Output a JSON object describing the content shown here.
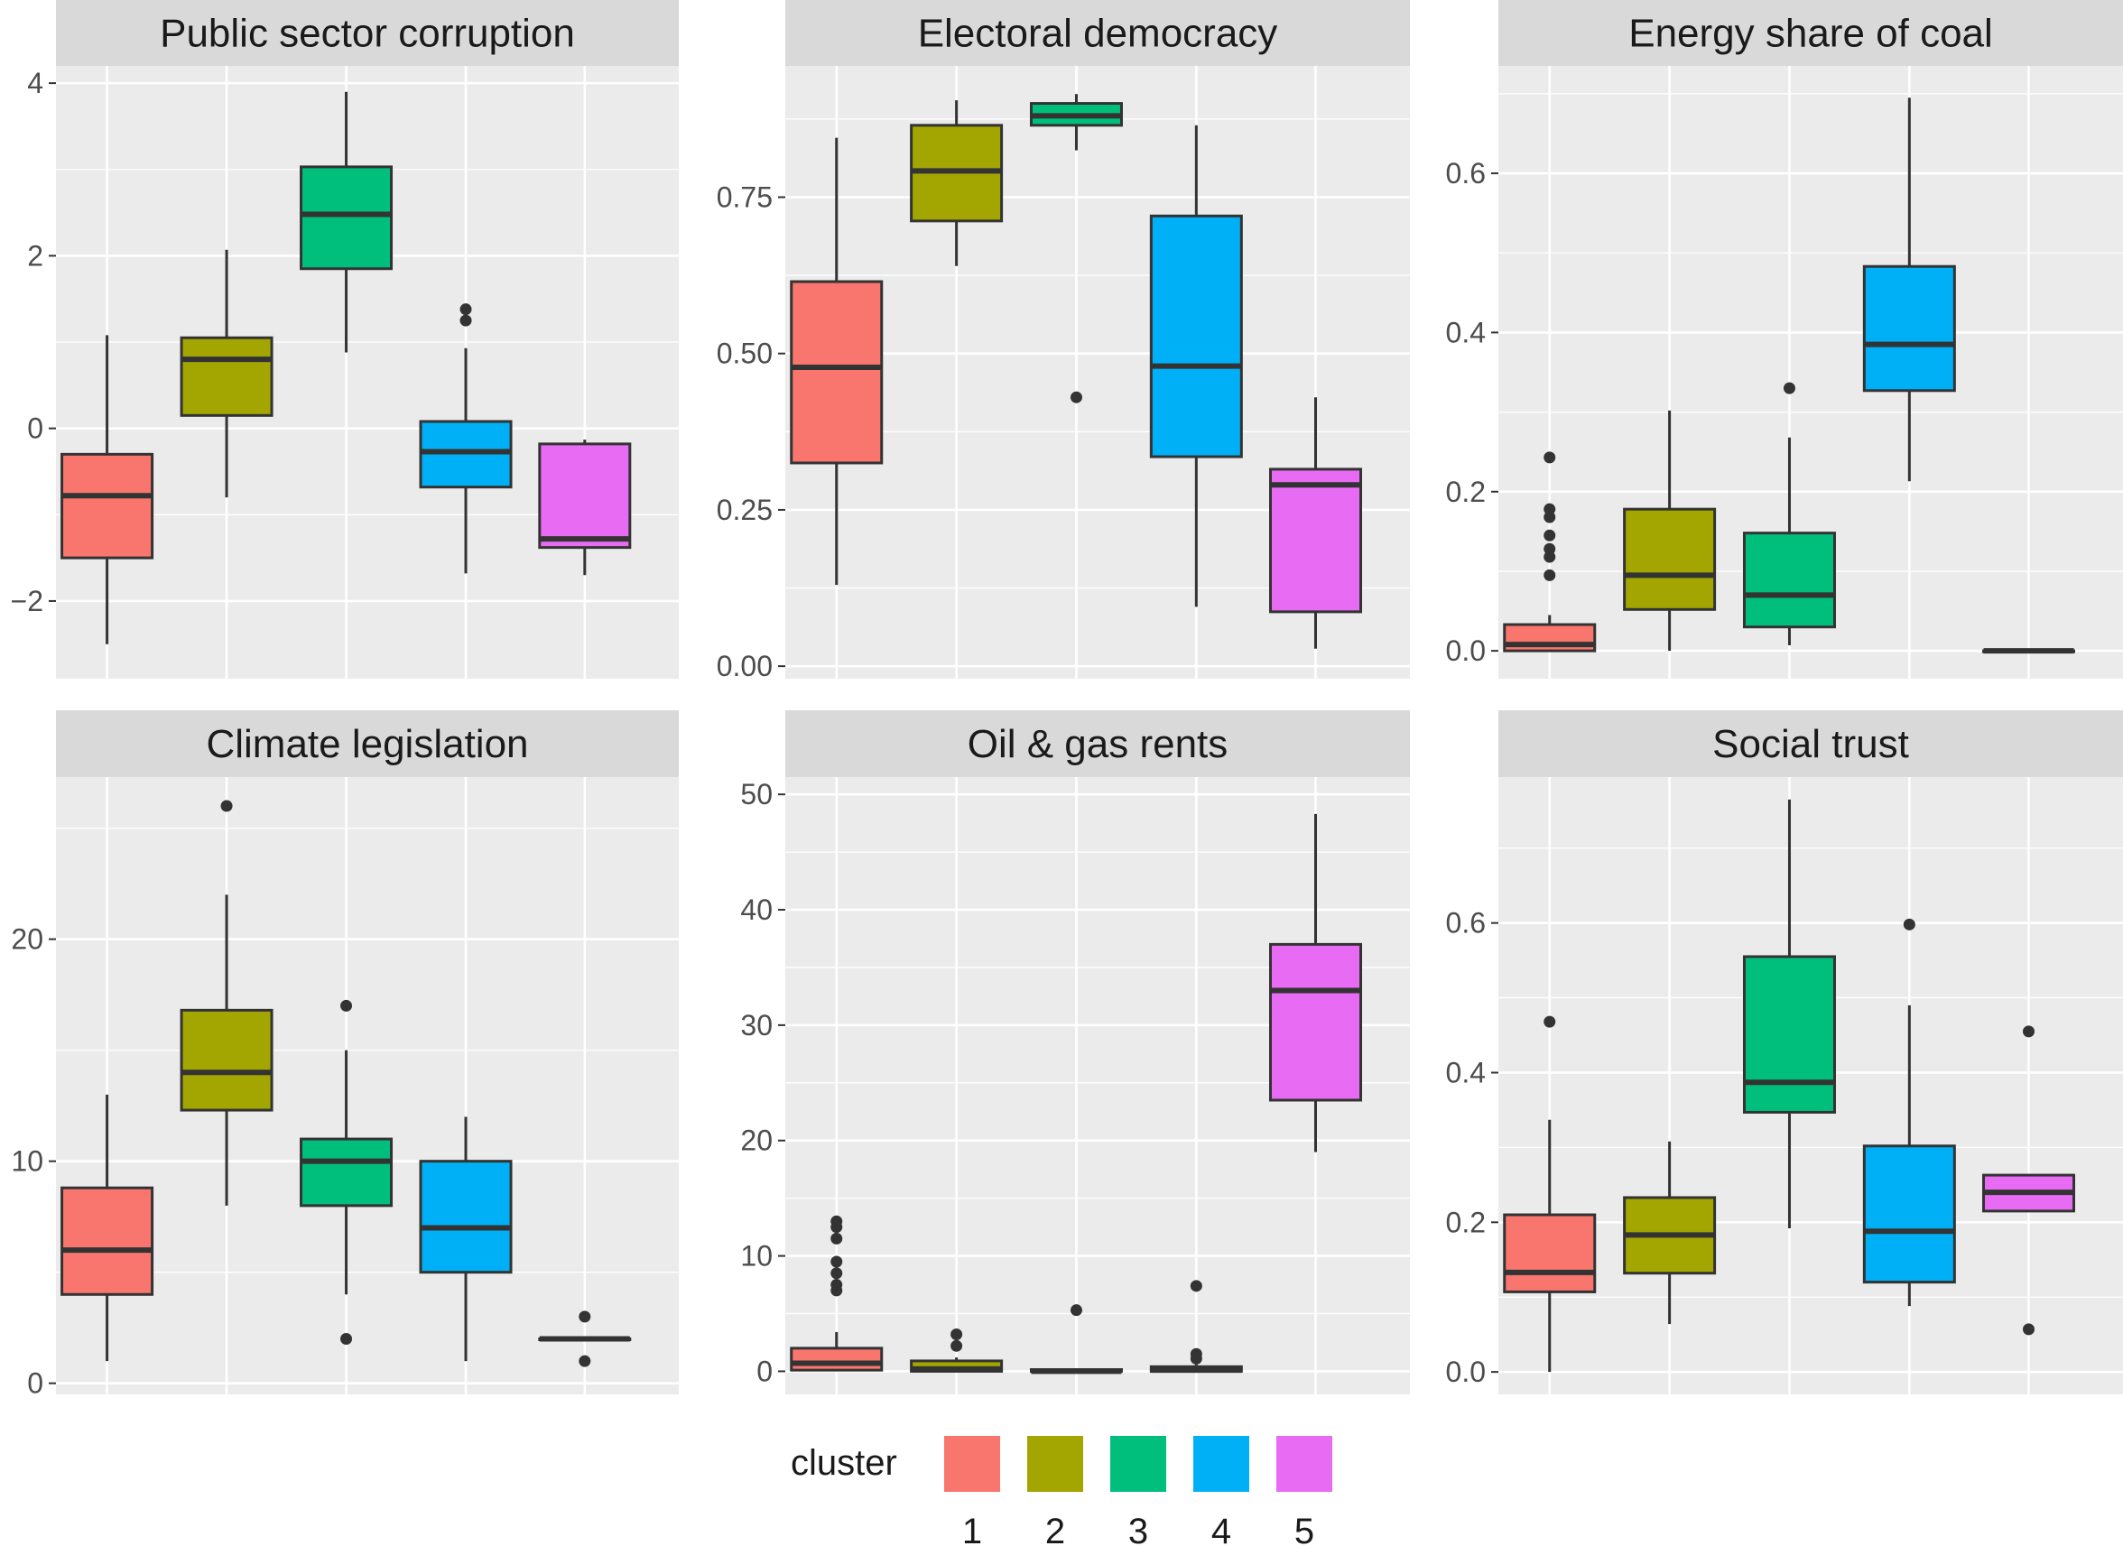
{
  "chart_data": [
    {
      "type": "box",
      "title": "Public sector corruption",
      "ylim": [
        -2.9,
        4.2
      ],
      "yticks": [
        -2,
        0,
        2,
        4
      ],
      "ytick_labels": [
        "−2",
        "0",
        "2",
        "4"
      ],
      "categories": [
        "1",
        "2",
        "3",
        "4",
        "5"
      ],
      "boxes": [
        {
          "cluster": "1",
          "min": -2.5,
          "q1": -1.5,
          "median": -0.78,
          "q3": -0.3,
          "max": 1.08,
          "outliers": []
        },
        {
          "cluster": "2",
          "min": -0.8,
          "q1": 0.15,
          "median": 0.8,
          "q3": 1.05,
          "max": 2.07,
          "outliers": []
        },
        {
          "cluster": "3",
          "min": 0.88,
          "q1": 1.85,
          "median": 2.48,
          "q3": 3.03,
          "max": 3.9,
          "outliers": []
        },
        {
          "cluster": "4",
          "min": -1.68,
          "q1": -0.68,
          "median": -0.27,
          "q3": 0.08,
          "max": 0.93,
          "outliers": [
            1.25,
            1.38
          ]
        },
        {
          "cluster": "5",
          "min": -1.7,
          "q1": -1.38,
          "median": -1.28,
          "q3": -0.18,
          "max": -0.13,
          "outliers": []
        }
      ]
    },
    {
      "type": "box",
      "title": "Electoral democracy",
      "ylim": [
        -0.02,
        0.96
      ],
      "yticks": [
        0,
        0.25,
        0.5,
        0.75
      ],
      "ytick_labels": [
        "0.00",
        "0.25",
        "0.50",
        "0.75"
      ],
      "categories": [
        "1",
        "2",
        "3",
        "4",
        "5"
      ],
      "boxes": [
        {
          "cluster": "1",
          "min": 0.13,
          "q1": 0.325,
          "median": 0.478,
          "q3": 0.615,
          "max": 0.845,
          "outliers": []
        },
        {
          "cluster": "2",
          "min": 0.64,
          "q1": 0.712,
          "median": 0.792,
          "q3": 0.865,
          "max": 0.905,
          "outliers": []
        },
        {
          "cluster": "3",
          "min": 0.825,
          "q1": 0.865,
          "median": 0.88,
          "q3": 0.9,
          "max": 0.915,
          "outliers": [
            0.43
          ]
        },
        {
          "cluster": "4",
          "min": 0.095,
          "q1": 0.335,
          "median": 0.48,
          "q3": 0.72,
          "max": 0.865,
          "outliers": []
        },
        {
          "cluster": "5",
          "min": 0.028,
          "q1": 0.087,
          "median": 0.29,
          "q3": 0.315,
          "max": 0.43,
          "outliers": []
        }
      ]
    },
    {
      "type": "box",
      "title": "Energy share of coal",
      "ylim": [
        -0.035,
        0.735
      ],
      "yticks": [
        0,
        0.2,
        0.4,
        0.6
      ],
      "ytick_labels": [
        "0.0",
        "0.2",
        "0.4",
        "0.6"
      ],
      "categories": [
        "1",
        "2",
        "3",
        "4",
        "5"
      ],
      "boxes": [
        {
          "cluster": "1",
          "min": 0.0,
          "q1": 0.0,
          "median": 0.008,
          "q3": 0.033,
          "max": 0.045,
          "outliers": [
            0.095,
            0.118,
            0.128,
            0.145,
            0.168,
            0.178,
            0.243
          ]
        },
        {
          "cluster": "2",
          "min": 0.0,
          "q1": 0.052,
          "median": 0.095,
          "q3": 0.178,
          "max": 0.302,
          "outliers": []
        },
        {
          "cluster": "3",
          "min": 0.007,
          "q1": 0.03,
          "median": 0.07,
          "q3": 0.148,
          "max": 0.268,
          "outliers": [
            0.33
          ]
        },
        {
          "cluster": "4",
          "min": 0.213,
          "q1": 0.327,
          "median": 0.385,
          "q3": 0.483,
          "max": 0.695,
          "outliers": []
        },
        {
          "cluster": "5",
          "min": 0.0,
          "q1": 0.0,
          "median": 0.0,
          "q3": 0.0,
          "max": 0.0,
          "outliers": []
        }
      ]
    },
    {
      "type": "box",
      "title": "Climate legislation",
      "ylim": [
        -0.5,
        27.3
      ],
      "yticks": [
        0,
        10,
        20
      ],
      "ytick_labels": [
        "0",
        "10",
        "20"
      ],
      "categories": [
        "1",
        "2",
        "3",
        "4",
        "5"
      ],
      "boxes": [
        {
          "cluster": "1",
          "min": 1,
          "q1": 4,
          "median": 6,
          "q3": 8.8,
          "max": 13,
          "outliers": []
        },
        {
          "cluster": "2",
          "min": 8,
          "q1": 12.3,
          "median": 14,
          "q3": 16.8,
          "max": 22,
          "outliers": [
            26
          ]
        },
        {
          "cluster": "3",
          "min": 4,
          "q1": 8,
          "median": 10,
          "q3": 11,
          "max": 15,
          "outliers": [
            2,
            17
          ]
        },
        {
          "cluster": "4",
          "min": 1,
          "q1": 5,
          "median": 7,
          "q3": 10,
          "max": 12,
          "outliers": []
        },
        {
          "cluster": "5",
          "min": 2,
          "q1": 2,
          "median": 2,
          "q3": 2,
          "max": 2,
          "outliers": [
            1,
            3
          ]
        }
      ]
    },
    {
      "type": "box",
      "title": "Oil & gas rents",
      "ylim": [
        -2.0,
        51.5
      ],
      "yticks": [
        0,
        10,
        20,
        30,
        40,
        50
      ],
      "ytick_labels": [
        "0",
        "10",
        "20",
        "30",
        "40",
        "50"
      ],
      "categories": [
        "1",
        "2",
        "3",
        "4",
        "5"
      ],
      "boxes": [
        {
          "cluster": "1",
          "min": 0,
          "q1": 0.1,
          "median": 0.7,
          "q3": 2.0,
          "max": 3.4,
          "outliers": [
            7.0,
            7.5,
            8.5,
            9.5,
            11.5,
            12.5,
            13.0
          ]
        },
        {
          "cluster": "2",
          "min": 0,
          "q1": 0.0,
          "median": 0.2,
          "q3": 0.9,
          "max": 1.2,
          "outliers": [
            2.2,
            3.2
          ]
        },
        {
          "cluster": "3",
          "min": 0,
          "q1": 0.0,
          "median": 0.0,
          "q3": 0.15,
          "max": 0.2,
          "outliers": [
            5.3
          ]
        },
        {
          "cluster": "4",
          "min": 0,
          "q1": 0.0,
          "median": 0.1,
          "q3": 0.4,
          "max": 0.6,
          "outliers": [
            1.1,
            1.5,
            7.4
          ]
        },
        {
          "cluster": "5",
          "min": 19,
          "q1": 23.5,
          "median": 33,
          "q3": 37,
          "max": 48.3,
          "outliers": []
        }
      ]
    },
    {
      "type": "box",
      "title": "Social trust",
      "ylim": [
        -0.03,
        0.795
      ],
      "yticks": [
        0,
        0.2,
        0.4,
        0.6
      ],
      "ytick_labels": [
        "0.0",
        "0.2",
        "0.4",
        "0.6"
      ],
      "categories": [
        "1",
        "2",
        "3",
        "4",
        "5"
      ],
      "boxes": [
        {
          "cluster": "1",
          "min": 0.0,
          "q1": 0.107,
          "median": 0.133,
          "q3": 0.21,
          "max": 0.337,
          "outliers": [
            0.468
          ]
        },
        {
          "cluster": "2",
          "min": 0.064,
          "q1": 0.132,
          "median": 0.183,
          "q3": 0.233,
          "max": 0.308,
          "outliers": []
        },
        {
          "cluster": "3",
          "min": 0.192,
          "q1": 0.347,
          "median": 0.387,
          "q3": 0.555,
          "max": 0.765,
          "outliers": []
        },
        {
          "cluster": "4",
          "min": 0.088,
          "q1": 0.12,
          "median": 0.188,
          "q3": 0.302,
          "max": 0.49,
          "outliers": [
            0.598
          ]
        },
        {
          "cluster": "5",
          "min": 0.215,
          "q1": 0.215,
          "median": 0.24,
          "q3": 0.263,
          "max": 0.263,
          "outliers": [
            0.057,
            0.455
          ]
        }
      ]
    }
  ],
  "legend": {
    "title": "cluster",
    "placement": "bottom",
    "items": [
      {
        "label": "1",
        "color": "#F8766D"
      },
      {
        "label": "2",
        "color": "#A3A500"
      },
      {
        "label": "3",
        "color": "#00BF7D"
      },
      {
        "label": "4",
        "color": "#00B0F6"
      },
      {
        "label": "5",
        "color": "#E76BF3"
      }
    ]
  },
  "colors": {
    "panel_bg": "#EBEBEB",
    "strip_bg": "#D9D9D9",
    "grid": "#FFFFFF",
    "box_line": "#333333"
  }
}
